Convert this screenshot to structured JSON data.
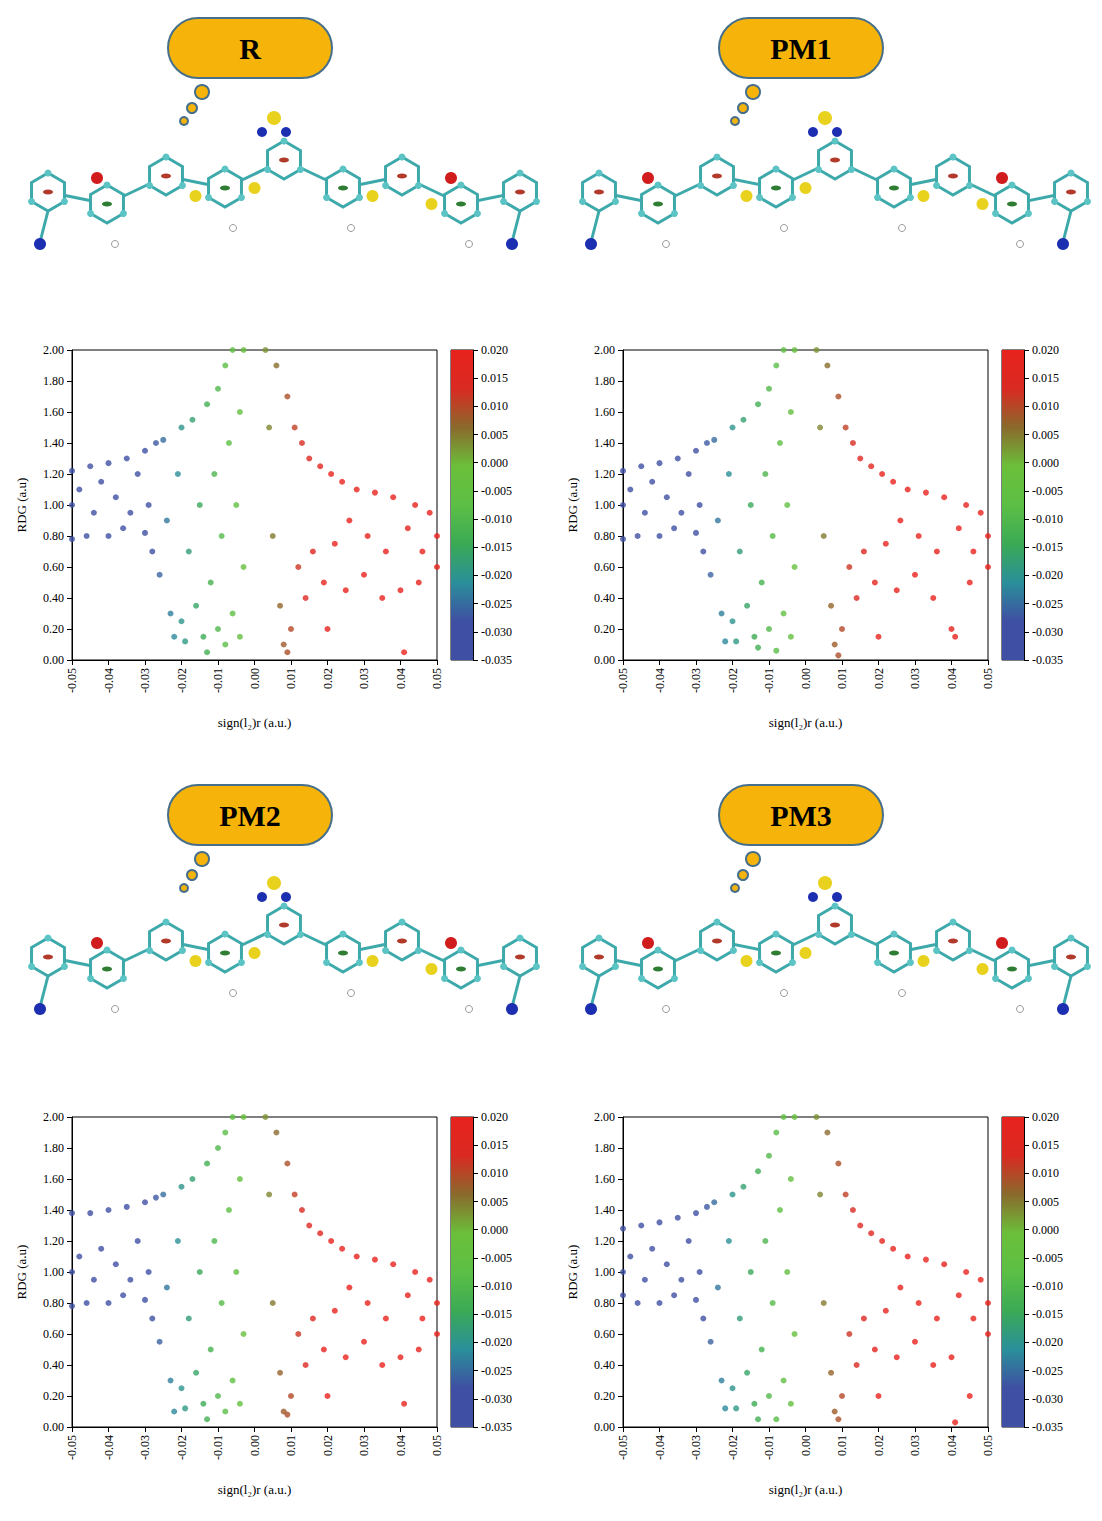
{
  "chart_data": [
    {
      "type": "scatter",
      "title": "R",
      "xlabel": "sign(l₂)r (a.u.)",
      "ylabel": "RDG (a.u)",
      "grid": false,
      "xlim": [
        -0.05,
        0.05
      ],
      "xticks": [
        -0.05,
        -0.04,
        -0.03,
        -0.02,
        -0.01,
        {
          "value": 0,
          "label": "0.00"
        },
        0.01,
        0.02,
        0.03,
        0.04,
        0.05
      ],
      "ylim": [
        0,
        2
      ],
      "yticks": [
        {
          "value": 0,
          "label": "0.00"
        },
        {
          "value": 0.2,
          "label": "0.20"
        },
        {
          "value": 0.4,
          "label": "0.40"
        },
        {
          "value": 0.6,
          "label": "0.60"
        },
        {
          "value": 0.8,
          "label": "0.80"
        },
        {
          "value": 1,
          "label": "1.00"
        },
        {
          "value": 1.2,
          "label": "1.20"
        },
        {
          "value": 1.4,
          "label": "1.40"
        },
        {
          "value": 1.6,
          "label": "1.60"
        },
        {
          "value": 1.8,
          "label": "1.80"
        },
        {
          "value": 2,
          "label": "2.00"
        }
      ],
      "colorbar": {
        "range": [
          -0.035,
          0.02
        ],
        "ticks": [
          {
            "value": 0.02,
            "label": "0.020"
          },
          0.015,
          {
            "value": 0.01,
            "label": "0.010"
          },
          0.005,
          {
            "value": 0,
            "label": "0.000"
          },
          -0.005,
          {
            "value": -0.01,
            "label": "-0.010"
          },
          -0.015,
          {
            "value": -0.02,
            "label": "-0.020"
          },
          -0.025,
          {
            "value": -0.03,
            "label": "-0.030"
          },
          -0.035
        ]
      },
      "x": [
        -0.05,
        -0.05,
        -0.05,
        -0.048,
        -0.046,
        -0.045,
        -0.044,
        -0.042,
        -0.04,
        -0.04,
        -0.038,
        -0.036,
        -0.035,
        -0.034,
        -0.032,
        -0.03,
        -0.03,
        -0.029,
        -0.028,
        -0.027,
        -0.026,
        -0.025,
        -0.024,
        -0.023,
        -0.022,
        -0.021,
        -0.02,
        -0.02,
        -0.019,
        -0.018,
        -0.017,
        -0.016,
        -0.015,
        -0.014,
        -0.013,
        -0.013,
        -0.012,
        -0.011,
        -0.01,
        -0.01,
        -0.009,
        -0.008,
        -0.008,
        -0.007,
        -0.006,
        -0.006,
        -0.005,
        -0.004,
        -0.004,
        -0.003,
        -0.003,
        0.003,
        0.004,
        0.005,
        0.006,
        0.007,
        0.008,
        0.009,
        0.009,
        0.01,
        0.011,
        0.012,
        0.013,
        0.014,
        0.015,
        0.016,
        0.018,
        0.019,
        0.02,
        0.021,
        0.022,
        0.024,
        0.025,
        0.026,
        0.028,
        0.03,
        0.031,
        0.033,
        0.035,
        0.036,
        0.038,
        0.04,
        0.041,
        0.042,
        0.044,
        0.045,
        0.046,
        0.048,
        0.05,
        0.05
      ],
      "values": [
        1.22,
        0.78,
        1.0,
        1.1,
        0.8,
        1.25,
        0.95,
        1.15,
        0.8,
        1.27,
        1.05,
        0.85,
        1.3,
        0.95,
        1.2,
        0.82,
        1.35,
        1.0,
        0.7,
        1.4,
        0.55,
        1.42,
        0.9,
        0.3,
        0.15,
        1.2,
        0.25,
        1.5,
        0.12,
        0.7,
        1.55,
        0.35,
        1.0,
        0.15,
        0.05,
        1.65,
        0.5,
        1.2,
        0.2,
        1.75,
        0.8,
        0.1,
        1.9,
        1.4,
        0.3,
        2.0,
        1.0,
        0.15,
        1.6,
        2.0,
        0.6,
        2.0,
        1.5,
        0.8,
        1.9,
        0.35,
        0.1,
        0.05,
        1.7,
        0.2,
        1.5,
        0.6,
        1.4,
        0.4,
        1.3,
        0.7,
        1.25,
        0.5,
        0.2,
        1.2,
        0.75,
        1.15,
        0.45,
        0.9,
        1.1,
        0.55,
        0.8,
        1.08,
        0.4,
        0.7,
        1.05,
        0.45,
        0.05,
        0.85,
        1.0,
        0.5,
        0.7,
        0.95,
        0.6,
        0.8
      ]
    },
    {
      "type": "scatter",
      "title": "PM1",
      "xlabel": "sign(l₂)r (a.u.)",
      "ylabel": "RDG (a.u)",
      "grid": false,
      "xlim": [
        -0.05,
        0.05
      ],
      "xticks": [
        -0.05,
        -0.04,
        -0.03,
        -0.02,
        -0.01,
        {
          "value": 0,
          "label": "0.00"
        },
        0.01,
        0.02,
        0.03,
        0.04,
        0.05
      ],
      "ylim": [
        0,
        2
      ],
      "yticks": [
        {
          "value": 0,
          "label": "0.00"
        },
        {
          "value": 0.2,
          "label": "0.20"
        },
        {
          "value": 0.4,
          "label": "0.40"
        },
        {
          "value": 0.6,
          "label": "0.60"
        },
        {
          "value": 0.8,
          "label": "0.80"
        },
        {
          "value": 1,
          "label": "1.00"
        },
        {
          "value": 1.2,
          "label": "1.20"
        },
        {
          "value": 1.4,
          "label": "1.40"
        },
        {
          "value": 1.6,
          "label": "1.60"
        },
        {
          "value": 1.8,
          "label": "1.80"
        },
        {
          "value": 2,
          "label": "2.00"
        }
      ],
      "colorbar": {
        "range": [
          -0.035,
          0.02
        ],
        "ticks": [
          {
            "value": 0.02,
            "label": "0.020"
          },
          0.015,
          {
            "value": 0.01,
            "label": "0.010"
          },
          0.005,
          {
            "value": 0,
            "label": "0.000"
          },
          -0.005,
          {
            "value": -0.01,
            "label": "-0.010"
          },
          -0.015,
          {
            "value": -0.02,
            "label": "-0.020"
          },
          -0.025,
          {
            "value": -0.03,
            "label": "-0.030"
          },
          -0.035
        ]
      },
      "x": [
        -0.05,
        -0.05,
        -0.05,
        -0.048,
        -0.046,
        -0.045,
        -0.044,
        -0.042,
        -0.04,
        -0.04,
        -0.038,
        -0.036,
        -0.035,
        -0.034,
        -0.032,
        -0.03,
        -0.03,
        -0.029,
        -0.028,
        -0.027,
        -0.026,
        -0.025,
        -0.024,
        -0.023,
        -0.022,
        -0.021,
        -0.02,
        -0.02,
        -0.019,
        -0.018,
        -0.017,
        -0.016,
        -0.015,
        -0.014,
        -0.013,
        -0.013,
        -0.012,
        -0.011,
        -0.01,
        -0.01,
        -0.009,
        -0.008,
        -0.008,
        -0.007,
        -0.006,
        -0.006,
        -0.005,
        -0.004,
        -0.004,
        -0.003,
        -0.003,
        0.003,
        0.004,
        0.005,
        0.006,
        0.007,
        0.008,
        0.009,
        0.009,
        0.01,
        0.011,
        0.012,
        0.013,
        0.014,
        0.015,
        0.016,
        0.018,
        0.019,
        0.02,
        0.021,
        0.022,
        0.024,
        0.025,
        0.026,
        0.028,
        0.03,
        0.031,
        0.033,
        0.035,
        0.036,
        0.038,
        0.04,
        0.041,
        0.042,
        0.044,
        0.045,
        0.046,
        0.048,
        0.05,
        0.05
      ],
      "values": [
        1.22,
        0.78,
        1.0,
        1.1,
        0.8,
        1.25,
        0.95,
        1.15,
        0.8,
        1.27,
        1.05,
        0.85,
        1.3,
        0.95,
        1.2,
        0.82,
        1.35,
        1.0,
        0.7,
        1.4,
        0.55,
        1.42,
        0.9,
        0.3,
        0.12,
        1.2,
        0.25,
        1.5,
        0.12,
        0.7,
        1.55,
        0.35,
        1.0,
        0.15,
        0.08,
        1.65,
        0.5,
        1.2,
        0.2,
        1.75,
        0.8,
        0.06,
        1.9,
        1.4,
        0.3,
        2.0,
        1.0,
        0.15,
        1.6,
        2.0,
        0.6,
        2.0,
        1.5,
        0.8,
        1.9,
        0.35,
        0.1,
        0.03,
        1.7,
        0.2,
        1.5,
        0.6,
        1.4,
        0.4,
        1.3,
        0.7,
        1.25,
        0.5,
        0.15,
        1.2,
        0.75,
        1.15,
        0.45,
        0.9,
        1.1,
        0.55,
        0.8,
        1.08,
        0.4,
        0.7,
        1.05,
        0.2,
        0.15,
        0.85,
        1.0,
        0.5,
        0.7,
        0.95,
        0.6,
        0.8
      ]
    },
    {
      "type": "scatter",
      "title": "PM2",
      "xlabel": "sign(l₂)r (a.u.)",
      "ylabel": "RDG (a.u)",
      "grid": false,
      "xlim": [
        -0.05,
        0.05
      ],
      "xticks": [
        -0.05,
        -0.04,
        -0.03,
        -0.02,
        -0.01,
        {
          "value": 0,
          "label": "0.00"
        },
        0.01,
        0.02,
        0.03,
        0.04,
        0.05
      ],
      "ylim": [
        0,
        2
      ],
      "yticks": [
        {
          "value": 0,
          "label": "0.00"
        },
        {
          "value": 0.2,
          "label": "0.20"
        },
        {
          "value": 0.4,
          "label": "0.40"
        },
        {
          "value": 0.6,
          "label": "0.60"
        },
        {
          "value": 0.8,
          "label": "0.80"
        },
        {
          "value": 1,
          "label": "1.00"
        },
        {
          "value": 1.2,
          "label": "1.20"
        },
        {
          "value": 1.4,
          "label": "1.40"
        },
        {
          "value": 1.6,
          "label": "1.60"
        },
        {
          "value": 1.8,
          "label": "1.80"
        },
        {
          "value": 2,
          "label": "2.00"
        }
      ],
      "colorbar": {
        "range": [
          -0.035,
          0.02
        ],
        "ticks": [
          {
            "value": 0.02,
            "label": "0.020"
          },
          0.015,
          {
            "value": 0.01,
            "label": "0.010"
          },
          0.005,
          {
            "value": 0,
            "label": "0.000"
          },
          -0.005,
          {
            "value": -0.01,
            "label": "-0.010"
          },
          -0.015,
          {
            "value": -0.02,
            "label": "-0.020"
          },
          -0.025,
          {
            "value": -0.03,
            "label": "-0.030"
          },
          -0.035
        ]
      },
      "x": [
        -0.05,
        -0.05,
        -0.05,
        -0.048,
        -0.046,
        -0.045,
        -0.044,
        -0.042,
        -0.04,
        -0.04,
        -0.038,
        -0.036,
        -0.035,
        -0.034,
        -0.032,
        -0.03,
        -0.03,
        -0.029,
        -0.028,
        -0.027,
        -0.026,
        -0.025,
        -0.024,
        -0.023,
        -0.022,
        -0.021,
        -0.02,
        -0.02,
        -0.019,
        -0.018,
        -0.017,
        -0.016,
        -0.015,
        -0.014,
        -0.013,
        -0.013,
        -0.012,
        -0.011,
        -0.01,
        -0.01,
        -0.009,
        -0.008,
        -0.008,
        -0.007,
        -0.006,
        -0.006,
        -0.005,
        -0.004,
        -0.004,
        -0.003,
        -0.003,
        0.003,
        0.004,
        0.005,
        0.006,
        0.007,
        0.008,
        0.009,
        0.009,
        0.01,
        0.011,
        0.012,
        0.013,
        0.014,
        0.015,
        0.016,
        0.018,
        0.019,
        0.02,
        0.021,
        0.022,
        0.024,
        0.025,
        0.026,
        0.028,
        0.03,
        0.031,
        0.033,
        0.035,
        0.036,
        0.038,
        0.04,
        0.041,
        0.042,
        0.044,
        0.045,
        0.046,
        0.048,
        0.05,
        0.05
      ],
      "values": [
        1.38,
        0.78,
        1.0,
        1.1,
        0.8,
        1.38,
        0.95,
        1.15,
        0.8,
        1.4,
        1.05,
        0.85,
        1.42,
        0.95,
        1.2,
        0.82,
        1.45,
        1.0,
        0.7,
        1.48,
        0.55,
        1.5,
        0.9,
        0.3,
        0.1,
        1.2,
        0.25,
        1.55,
        0.12,
        0.7,
        1.6,
        0.35,
        1.0,
        0.15,
        0.05,
        1.7,
        0.5,
        1.2,
        0.2,
        1.8,
        0.8,
        0.1,
        1.9,
        1.4,
        0.3,
        2.0,
        1.0,
        0.15,
        1.6,
        2.0,
        0.6,
        2.0,
        1.5,
        0.8,
        1.9,
        0.35,
        0.1,
        0.08,
        1.7,
        0.2,
        1.5,
        0.6,
        1.4,
        0.4,
        1.3,
        0.7,
        1.25,
        0.5,
        0.2,
        1.2,
        0.75,
        1.15,
        0.45,
        0.9,
        1.1,
        0.55,
        0.8,
        1.08,
        0.4,
        0.7,
        1.05,
        0.45,
        0.15,
        0.85,
        1.0,
        0.5,
        0.7,
        0.95,
        0.6,
        0.8
      ]
    },
    {
      "type": "scatter",
      "title": "PM3",
      "xlabel": "sign(l₂)r (a.u.)",
      "ylabel": "RDG (a.u)",
      "grid": false,
      "xlim": [
        -0.05,
        0.05
      ],
      "xticks": [
        -0.05,
        -0.04,
        -0.03,
        -0.02,
        -0.01,
        {
          "value": 0,
          "label": "0.00"
        },
        0.01,
        0.02,
        0.03,
        0.04,
        0.05
      ],
      "ylim": [
        0,
        2
      ],
      "yticks": [
        {
          "value": 0,
          "label": "0.00"
        },
        {
          "value": 0.2,
          "label": "0.20"
        },
        {
          "value": 0.4,
          "label": "0.40"
        },
        {
          "value": 0.6,
          "label": "0.60"
        },
        {
          "value": 0.8,
          "label": "0.80"
        },
        {
          "value": 1,
          "label": "1.00"
        },
        {
          "value": 1.2,
          "label": "1.20"
        },
        {
          "value": 1.4,
          "label": "1.40"
        },
        {
          "value": 1.6,
          "label": "1.60"
        },
        {
          "value": 1.8,
          "label": "1.80"
        },
        {
          "value": 2,
          "label": "2.00"
        }
      ],
      "colorbar": {
        "range": [
          -0.035,
          0.02
        ],
        "ticks": [
          {
            "value": 0.02,
            "label": "0.020"
          },
          0.015,
          {
            "value": 0.01,
            "label": "0.010"
          },
          0.005,
          {
            "value": 0,
            "label": "0.000"
          },
          -0.005,
          {
            "value": -0.01,
            "label": "-0.010"
          },
          -0.015,
          {
            "value": -0.02,
            "label": "-0.020"
          },
          -0.025,
          {
            "value": -0.03,
            "label": "-0.030"
          },
          -0.035
        ]
      },
      "x": [
        -0.05,
        -0.05,
        -0.05,
        -0.048,
        -0.046,
        -0.045,
        -0.044,
        -0.042,
        -0.04,
        -0.04,
        -0.038,
        -0.036,
        -0.035,
        -0.034,
        -0.032,
        -0.03,
        -0.03,
        -0.029,
        -0.028,
        -0.027,
        -0.026,
        -0.025,
        -0.024,
        -0.023,
        -0.022,
        -0.021,
        -0.02,
        -0.02,
        -0.019,
        -0.018,
        -0.017,
        -0.016,
        -0.015,
        -0.014,
        -0.013,
        -0.013,
        -0.012,
        -0.011,
        -0.01,
        -0.01,
        -0.009,
        -0.008,
        -0.008,
        -0.007,
        -0.006,
        -0.006,
        -0.005,
        -0.004,
        -0.004,
        -0.003,
        -0.003,
        0.003,
        0.004,
        0.005,
        0.006,
        0.007,
        0.008,
        0.009,
        0.009,
        0.01,
        0.011,
        0.012,
        0.013,
        0.014,
        0.015,
        0.016,
        0.018,
        0.019,
        0.02,
        0.021,
        0.022,
        0.024,
        0.025,
        0.026,
        0.028,
        0.03,
        0.031,
        0.033,
        0.035,
        0.036,
        0.038,
        0.04,
        0.041,
        0.042,
        0.044,
        0.045,
        0.046,
        0.048,
        0.05,
        0.05
      ],
      "values": [
        1.28,
        0.85,
        1.0,
        1.1,
        0.8,
        1.3,
        0.95,
        1.15,
        0.8,
        1.32,
        1.05,
        0.85,
        1.35,
        0.95,
        1.2,
        0.82,
        1.38,
        1.0,
        0.7,
        1.42,
        0.55,
        1.45,
        0.9,
        0.3,
        0.12,
        1.2,
        0.25,
        1.5,
        0.12,
        0.7,
        1.55,
        0.35,
        1.0,
        0.15,
        0.05,
        1.65,
        0.5,
        1.2,
        0.2,
        1.75,
        0.8,
        0.05,
        1.9,
        1.4,
        0.3,
        2.0,
        1.0,
        0.15,
        1.6,
        2.0,
        0.6,
        2.0,
        1.5,
        0.8,
        1.9,
        0.35,
        0.1,
        0.05,
        1.7,
        0.2,
        1.5,
        0.6,
        1.4,
        0.4,
        1.3,
        0.7,
        1.25,
        0.5,
        0.2,
        1.2,
        0.75,
        1.15,
        0.45,
        0.9,
        1.1,
        0.55,
        0.8,
        1.08,
        0.4,
        0.7,
        1.05,
        0.45,
        0.03,
        0.85,
        1.0,
        0.2,
        0.7,
        0.95,
        0.6,
        0.8
      ]
    }
  ]
}
